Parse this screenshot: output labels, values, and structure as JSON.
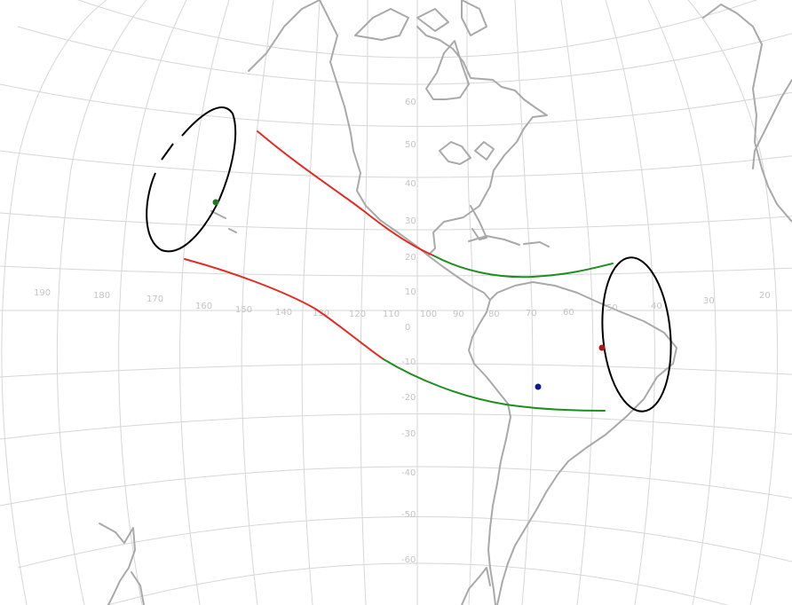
{
  "map": {
    "projection": "orthographic",
    "center": {
      "lon": -75,
      "lat": 0
    },
    "graticule_step_deg": 10,
    "longitude_labels": [
      "190",
      "180",
      "170",
      "160",
      "150",
      "140",
      "130",
      "120",
      "110",
      "100",
      "90",
      "80",
      "70",
      "60",
      "50",
      "40",
      "30",
      "20"
    ],
    "latitude_labels": [
      "60",
      "50",
      "40",
      "30",
      "20",
      "10",
      "0",
      "-10",
      "-20",
      "-30",
      "-40",
      "-50",
      "-60"
    ],
    "colors": {
      "graticule": "#d6d6d6",
      "coastline": "#a9a9a9",
      "label": "#c4c4c4",
      "track_red": "#e32b22",
      "track_green": "#1e8e1e",
      "ellipse": "#000000",
      "point_green": "#1f7a1f",
      "point_red": "#b01616",
      "point_blue": "#101a8c"
    }
  },
  "overlays": {
    "tracks": [
      {
        "id": "upper",
        "segments": [
          {
            "color": "red"
          },
          {
            "color": "green"
          }
        ]
      },
      {
        "id": "lower",
        "segments": [
          {
            "color": "red"
          },
          {
            "color": "green"
          }
        ]
      }
    ],
    "ellipses": [
      {
        "id": "west"
      },
      {
        "id": "east"
      }
    ],
    "points": [
      {
        "id": "green-point",
        "color": "green"
      },
      {
        "id": "red-point",
        "color": "red"
      },
      {
        "id": "blue-point",
        "color": "blue"
      }
    ]
  }
}
